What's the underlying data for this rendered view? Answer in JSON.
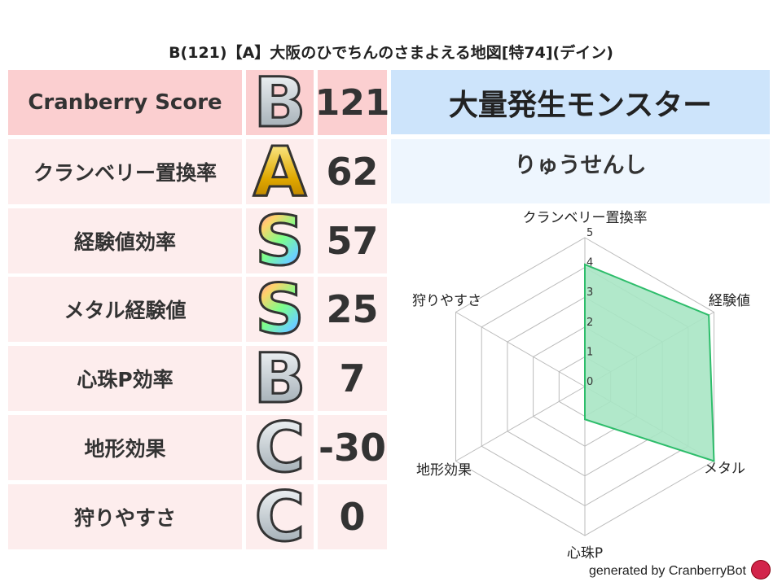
{
  "title": "B(121)【A】大阪のひでちんのさまよえる地図[特74](デイン)",
  "rows": [
    {
      "label": "Cranberry Score",
      "grade": "B",
      "value": "121"
    },
    {
      "label": "クランベリー置換率",
      "grade": "A",
      "value": "62"
    },
    {
      "label": "経験値効率",
      "grade": "S",
      "value": "57"
    },
    {
      "label": "メタル経験値",
      "grade": "S",
      "value": "25"
    },
    {
      "label": "心珠P効率",
      "grade": "B",
      "value": "7"
    },
    {
      "label": "地形効果",
      "grade": "C",
      "value": "-30"
    },
    {
      "label": "狩りやすさ",
      "grade": "C",
      "value": "0"
    }
  ],
  "monster": {
    "header": "大量発生モンスター",
    "name": "りゅうせんし"
  },
  "footer": "generated by CranberryBot",
  "chart_data": {
    "type": "radar",
    "axes": [
      "クランベリー置換率",
      "経験値",
      "メタル",
      "心珠P",
      "地形効果",
      "狩りやすさ"
    ],
    "values": [
      4.1,
      4.8,
      5.0,
      1.1,
      0,
      0
    ],
    "range": [
      0,
      5
    ],
    "ticks": [
      "0",
      "1",
      "2",
      "3",
      "4",
      "5"
    ],
    "fill_color": "#a8e6c4",
    "line_color": "#2ebd6b"
  }
}
